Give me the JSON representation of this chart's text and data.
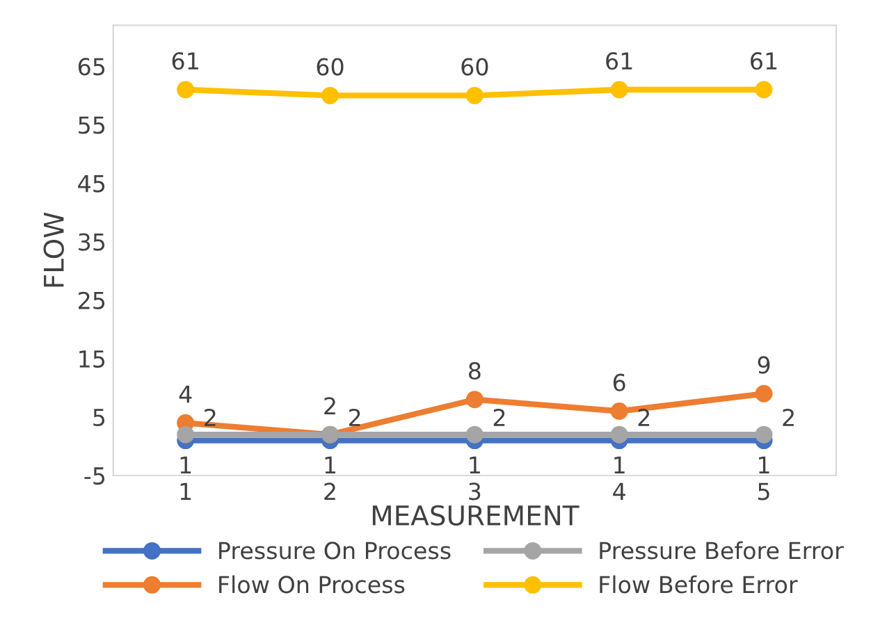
{
  "chart_data": {
    "type": "line",
    "xlabel": "MEASUREMENT",
    "ylabel": "FLOW",
    "categories": [
      "1",
      "2",
      "3",
      "4",
      "5"
    ],
    "series": [
      {
        "name": "Pressure On Process",
        "color": "#4472c4",
        "values": [
          1,
          1,
          1,
          1,
          1
        ]
      },
      {
        "name": "Flow On Process",
        "color": "#ed7d31",
        "values": [
          4,
          2,
          8,
          6,
          9
        ]
      },
      {
        "name": "Pressure Before Error",
        "color": "#a5a5a5",
        "values": [
          2,
          2,
          2,
          2,
          2
        ]
      },
      {
        "name": "Flow Before Error",
        "color": "#ffc000",
        "values": [
          61,
          60,
          60,
          61,
          61
        ]
      }
    ],
    "ylim": [
      -5,
      72
    ],
    "yticks": [
      -5,
      5,
      15,
      25,
      35,
      45,
      55,
      65
    ],
    "grid": false,
    "legend": "bottom",
    "marker": "circle",
    "line_style": "solid",
    "data_labels": true
  }
}
